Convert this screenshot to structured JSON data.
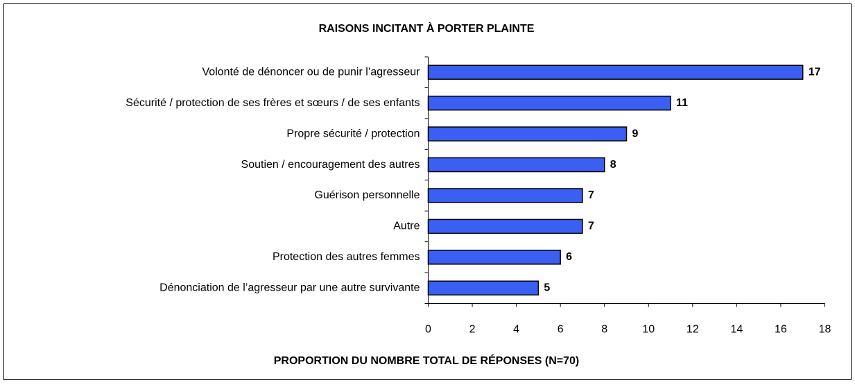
{
  "chart_data": {
    "type": "bar",
    "orientation": "horizontal",
    "title": "RAISONS INCITANT À PORTER PLAINTE",
    "x_label": "PROPORTION DU NOMBRE TOTAL DE RÉPONSES (N=70)",
    "categories": [
      "Volonté de dénoncer ou de punir l’agresseur",
      "Sécurité / protection de ses frères et sœurs / de ses enfants",
      "Propre sécurité / protection",
      "Soutien / encouragement des autres",
      "Guérison personnelle",
      "Autre",
      "Protection des autres femmes",
      "Dénonciation de l’agresseur par une autre survivante"
    ],
    "values": [
      17,
      11,
      9,
      8,
      7,
      7,
      6,
      5
    ],
    "color": "#3a5ff2",
    "xlim": [
      0,
      18
    ],
    "xticks": [
      0,
      2,
      4,
      6,
      8,
      10,
      12,
      14,
      16,
      18
    ],
    "grid": false
  }
}
